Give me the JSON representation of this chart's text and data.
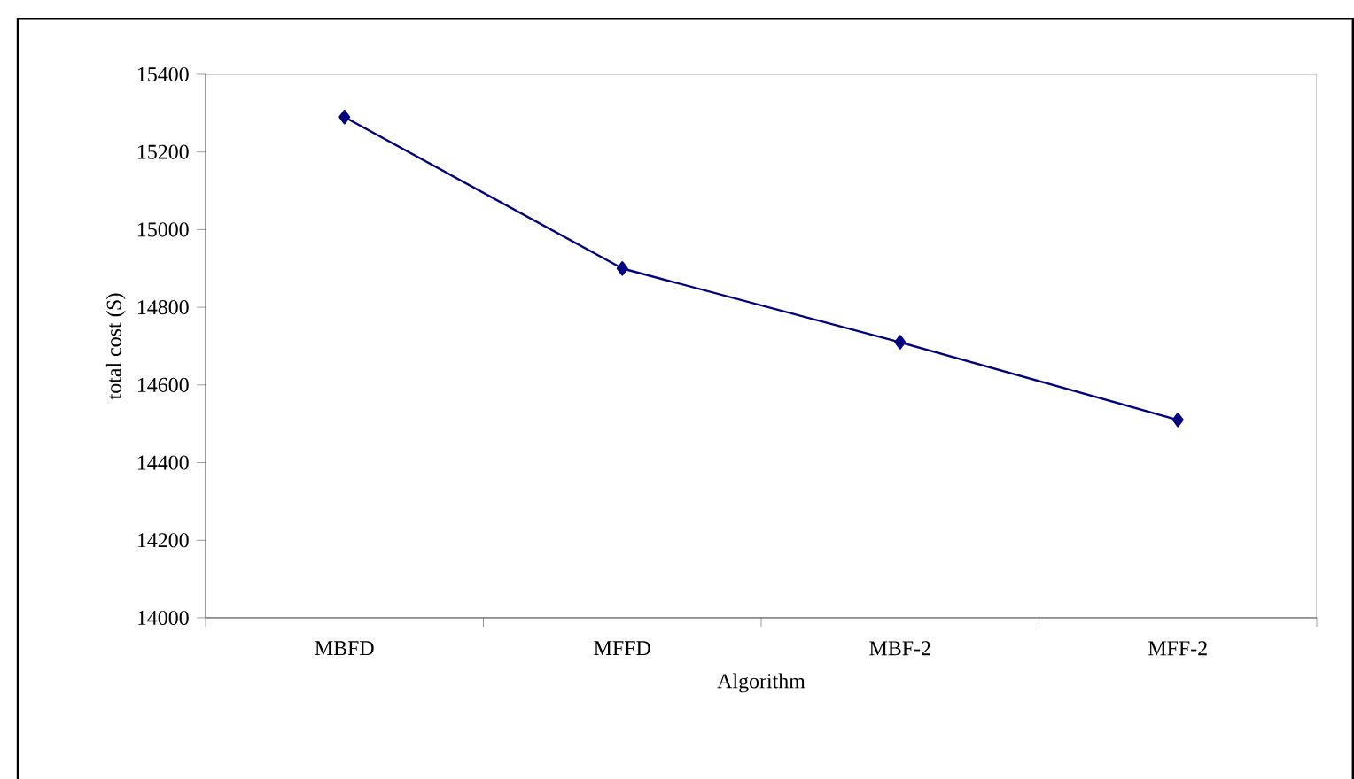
{
  "chart_data": {
    "type": "line",
    "xlabel": "Algorithm",
    "ylabel": "total cost ($)",
    "categories": [
      "MBFD",
      "MFFD",
      "MBF-2",
      "MFF-2"
    ],
    "series": [
      {
        "color": "#000080",
        "values": [
          15290,
          14900,
          14710,
          14510
        ]
      }
    ],
    "ylim": [
      14000,
      15400
    ],
    "yticks": [
      14000,
      14200,
      14400,
      14600,
      14800,
      15000,
      15200,
      15400
    ],
    "marker": "diamond",
    "line_style": "solid",
    "grid": false
  }
}
